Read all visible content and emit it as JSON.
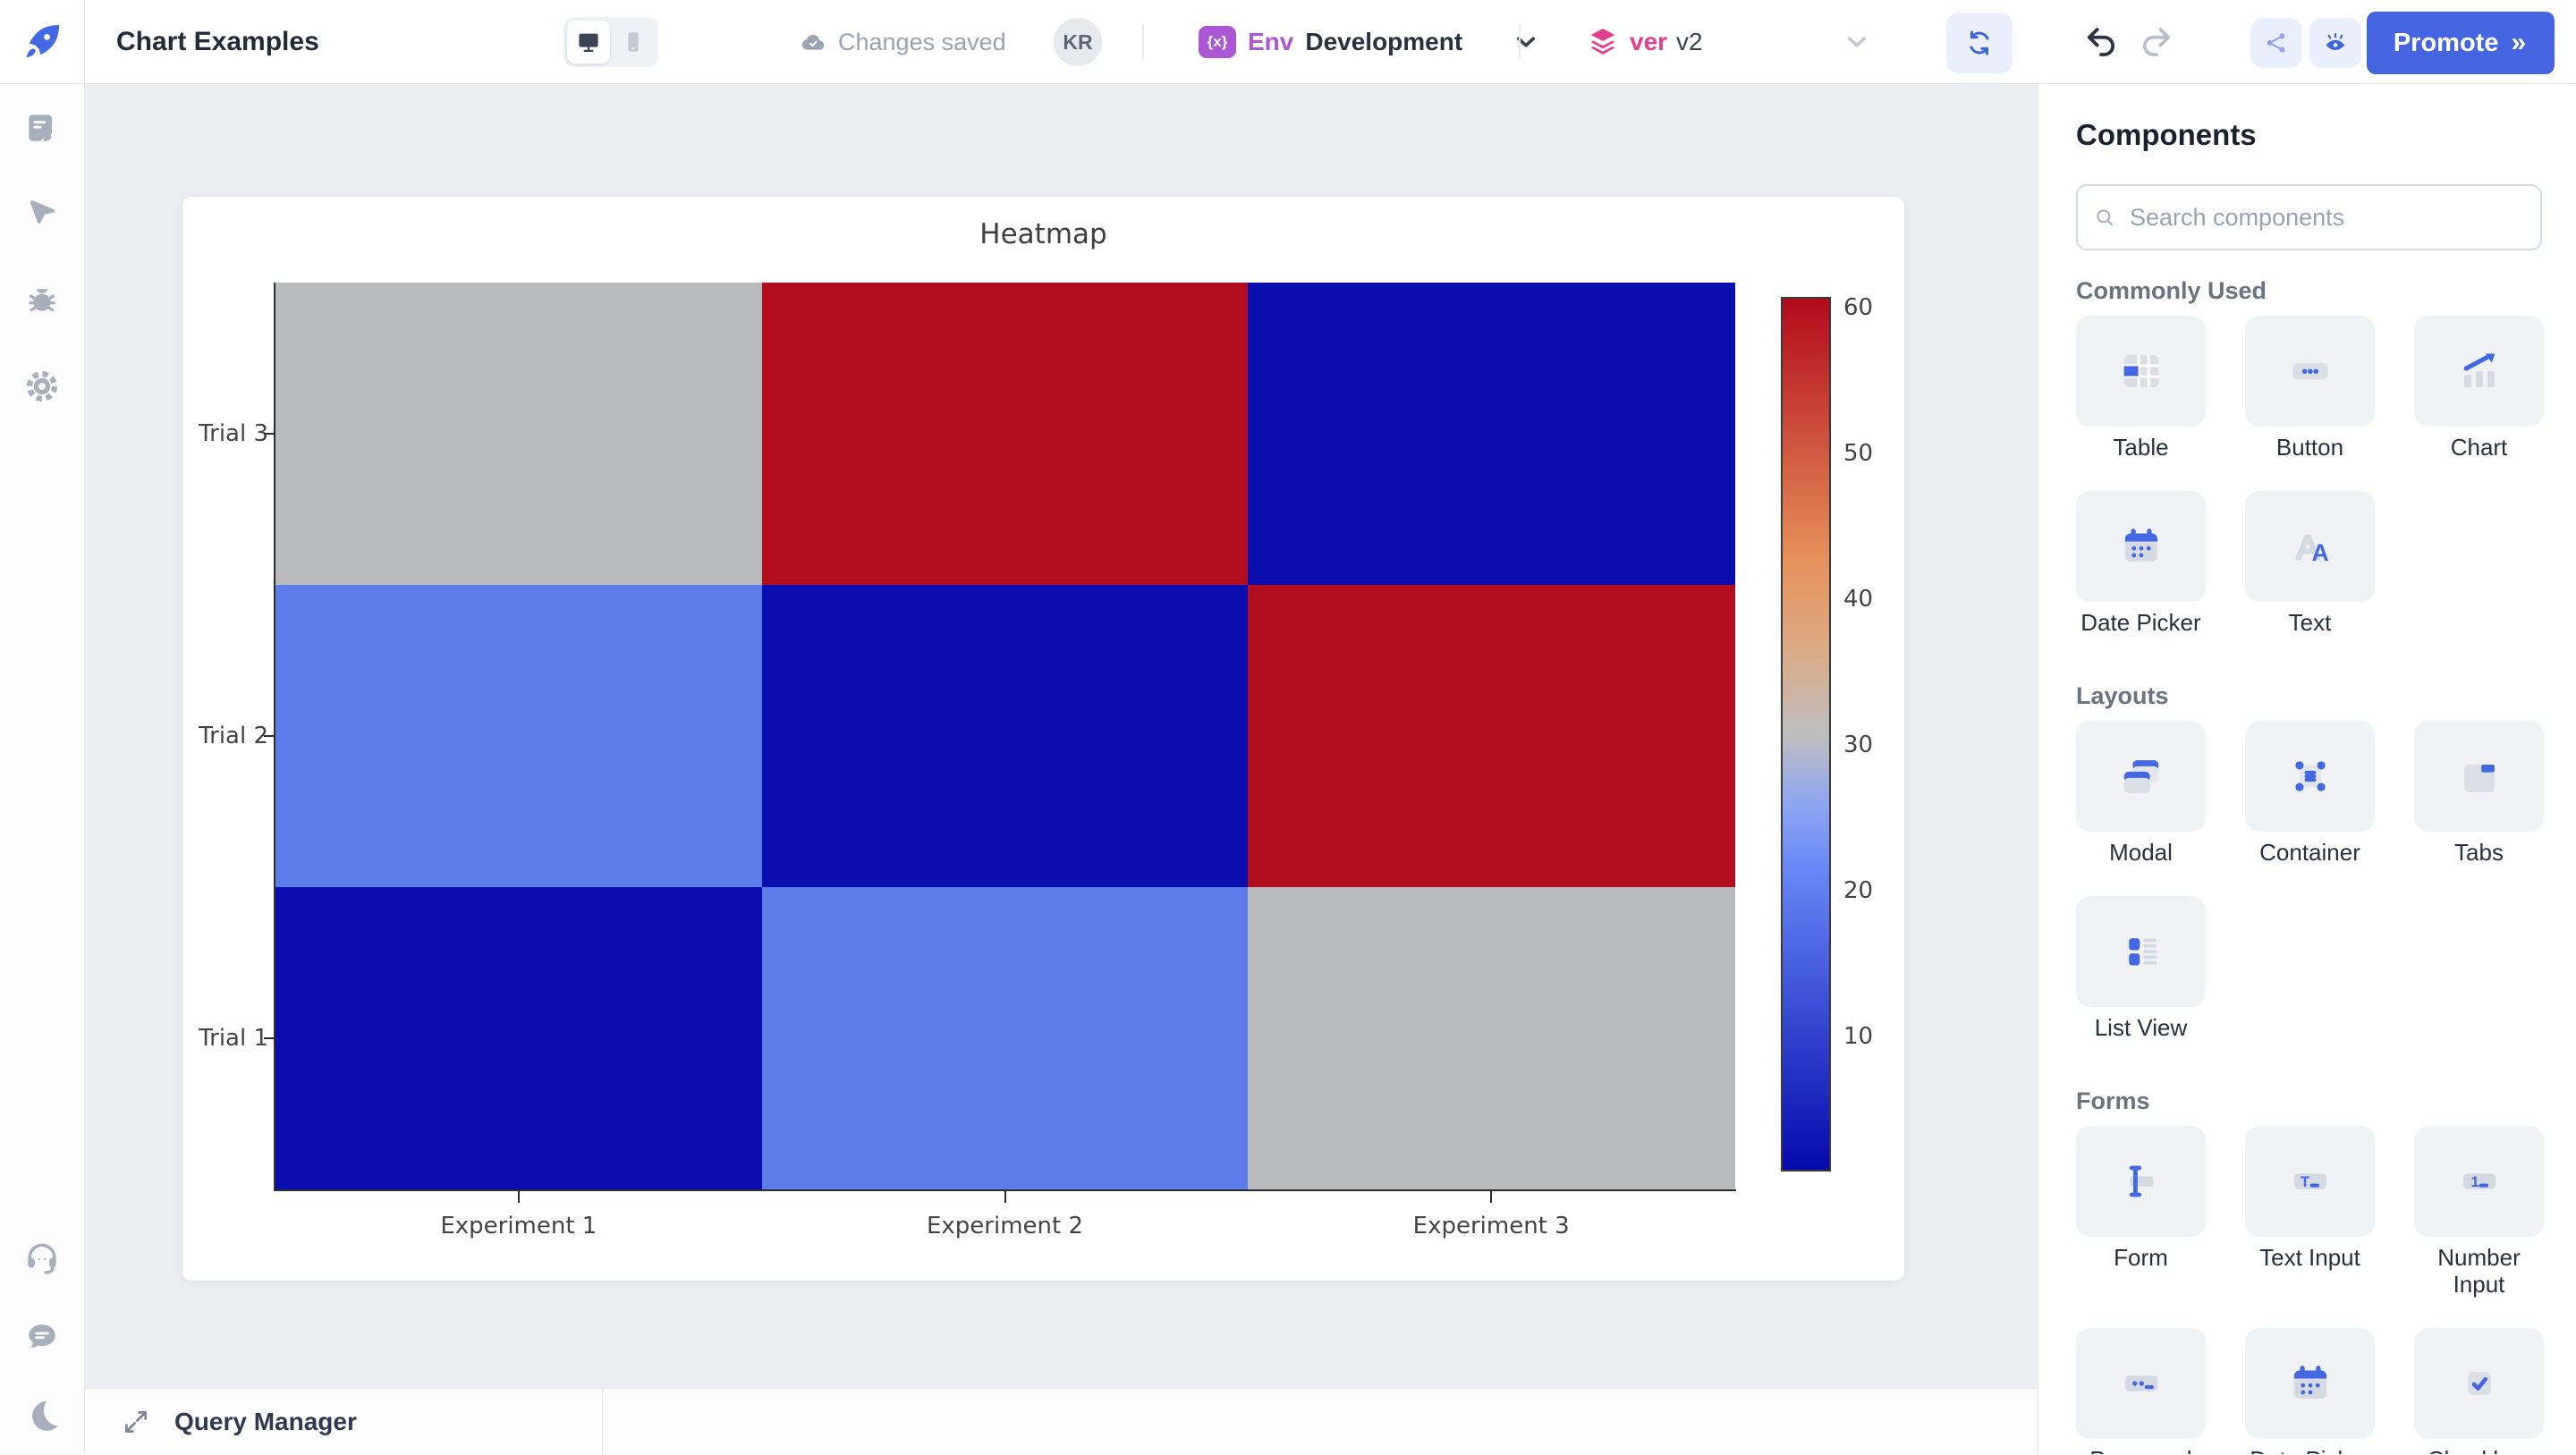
{
  "header": {
    "app_title": "Chart Examples",
    "status_text": "Changes saved",
    "avatar_initials": "KR",
    "env_icon_text": "{x}",
    "env_label": "Env",
    "env_value": "Development",
    "version_label": "ver",
    "version_value": "v2",
    "promote_label": "Promote",
    "promote_chevrons": "»"
  },
  "sidebar": {
    "top_icons": [
      "pages-icon",
      "inspector-icon",
      "debugger-icon",
      "settings-icon"
    ],
    "bottom_icons": [
      "support-icon",
      "comments-icon",
      "dark-mode-icon"
    ]
  },
  "chart_data": {
    "type": "heatmap",
    "title": "Heatmap",
    "x": [
      "Experiment 1",
      "Experiment 2",
      "Experiment 3"
    ],
    "y": [
      "Trial 1",
      "Trial 2",
      "Trial 3"
    ],
    "z": [
      [
        1,
        20,
        30
      ],
      [
        20,
        1,
        60
      ],
      [
        30,
        60,
        1
      ]
    ],
    "zmin": 1,
    "zmax": 60,
    "colorscale": "RdBu",
    "value_colors": {
      "1": "#0A0EAE",
      "20": "#5E7CE9",
      "30": "#B9BABD",
      "60": "#B30E1D"
    },
    "colorbar_ticks": [
      60,
      50,
      40,
      30,
      20,
      10
    ],
    "colorbar_gradient": [
      "#B20A1C 0%",
      "#D15B41 18%",
      "#E6915A 30%",
      "#DCAA84 40%",
      "#BEBEBE 50%",
      "#8FA6F1 58%",
      "#6A89F7 65%",
      "#3040CC 85%",
      "#050AAC 100%"
    ],
    "legend_position": "right",
    "grid": false
  },
  "components_panel": {
    "title": "Components",
    "search_placeholder": "Search components",
    "sections": [
      {
        "label": "Commonly Used",
        "items": [
          {
            "label": "Table",
            "icon": "table-icon"
          },
          {
            "label": "Button",
            "icon": "button-icon"
          },
          {
            "label": "Chart",
            "icon": "chart-icon"
          },
          {
            "label": "Date Picker",
            "icon": "datepicker-icon"
          },
          {
            "label": "Text",
            "icon": "text-icon"
          }
        ]
      },
      {
        "label": "Layouts",
        "items": [
          {
            "label": "Modal",
            "icon": "modal-icon"
          },
          {
            "label": "Container",
            "icon": "container-icon"
          },
          {
            "label": "Tabs",
            "icon": "tabs-icon"
          },
          {
            "label": "List View",
            "icon": "listview-icon"
          }
        ]
      },
      {
        "label": "Forms",
        "items": [
          {
            "label": "Form",
            "icon": "form-icon"
          },
          {
            "label": "Text Input",
            "icon": "textinput-icon"
          },
          {
            "label": "Number Input",
            "icon": "numberinput-icon"
          },
          {
            "label": "Password Input",
            "icon": "passwordinput-icon"
          },
          {
            "label": "Date Picker",
            "icon": "datepicker-icon"
          },
          {
            "label": "Checkbox",
            "icon": "checkbox-icon"
          }
        ]
      }
    ]
  },
  "bottom_bar": {
    "query_manager_label": "Query Manager"
  },
  "colors": {
    "accent-blue": "#4565E0",
    "icon-blue": "#3E63DD",
    "env-purple": "#AB57D4",
    "version-pink": "#E0408F",
    "component-blue": "#4368E3",
    "canvas-bg": "#EAEDF2",
    "muted-gray": "#96A1B0",
    "sidebar-icon": "#A7AFBC",
    "card-bg": "#F0F2F5",
    "icon-gray": "#D5DAE2",
    "icon-gray-2": "#DADFE7",
    "icon-gray-3": "#E2E6EC",
    "chart-text": "#444444"
  }
}
